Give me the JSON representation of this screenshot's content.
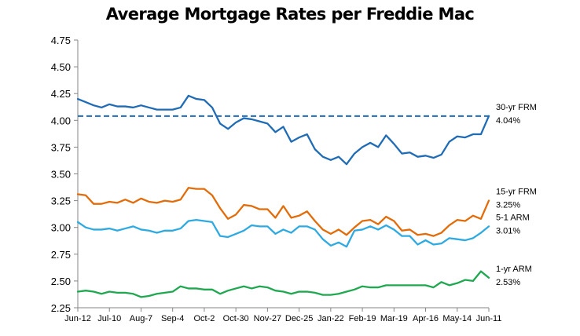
{
  "chart_data": {
    "type": "line",
    "title": "Average Mortgage Rates per Freddie Mac",
    "xlabel": "",
    "ylabel": "",
    "ylim": [
      2.25,
      4.75
    ],
    "yticks": [
      "4.75",
      "4.50",
      "4.25",
      "4.00",
      "3.75",
      "3.50",
      "3.25",
      "3.00",
      "2.75",
      "2.50",
      "2.25"
    ],
    "xtick_labels": [
      "Jun-12",
      "Jul-10",
      "Aug-7",
      "Sep-4",
      "Oct-2",
      "Oct-30",
      "Nov-27",
      "Dec-25",
      "Jan-22",
      "Feb-19",
      "Mar-19",
      "Apr-16",
      "May-14",
      "Jun-11"
    ],
    "grid": false,
    "series": [
      {
        "name": "30-yr FRM",
        "value_label": "4.04%",
        "color": "#1f6bb5",
        "values": [
          4.2,
          4.17,
          4.14,
          4.12,
          4.15,
          4.13,
          4.13,
          4.12,
          4.14,
          4.12,
          4.1,
          4.1,
          4.1,
          4.12,
          4.23,
          4.2,
          4.19,
          4.12,
          3.97,
          3.92,
          3.98,
          4.02,
          4.01,
          3.99,
          3.97,
          3.89,
          3.94,
          3.8,
          3.84,
          3.87,
          3.73,
          3.66,
          3.63,
          3.66,
          3.59,
          3.69,
          3.75,
          3.79,
          3.75,
          3.86,
          3.78,
          3.69,
          3.7,
          3.66,
          3.67,
          3.65,
          3.68,
          3.8,
          3.85,
          3.84,
          3.87,
          3.87,
          4.04
        ]
      },
      {
        "name": "15-yr FRM",
        "value_label": "3.25%",
        "color": "#e36c0a",
        "values": [
          3.31,
          3.3,
          3.22,
          3.22,
          3.24,
          3.23,
          3.26,
          3.23,
          3.27,
          3.24,
          3.23,
          3.25,
          3.24,
          3.26,
          3.37,
          3.36,
          3.36,
          3.3,
          3.18,
          3.08,
          3.12,
          3.21,
          3.2,
          3.17,
          3.17,
          3.09,
          3.2,
          3.09,
          3.11,
          3.15,
          3.06,
          2.98,
          2.94,
          2.98,
          2.93,
          3.0,
          3.06,
          3.07,
          3.03,
          3.1,
          3.06,
          2.97,
          2.98,
          2.93,
          2.94,
          2.92,
          2.95,
          3.02,
          3.07,
          3.06,
          3.11,
          3.08,
          3.25
        ]
      },
      {
        "name": "5-1 ARM",
        "value_label": "3.01%",
        "color": "#2eaae1",
        "values": [
          3.05,
          3.0,
          2.98,
          2.98,
          2.99,
          2.97,
          2.99,
          3.01,
          2.98,
          2.97,
          2.95,
          2.97,
          2.97,
          2.99,
          3.06,
          3.07,
          3.06,
          3.05,
          2.92,
          2.91,
          2.94,
          2.97,
          3.02,
          3.01,
          3.01,
          2.94,
          2.98,
          2.95,
          3.01,
          3.01,
          2.98,
          2.89,
          2.83,
          2.86,
          2.82,
          2.97,
          2.98,
          3.01,
          2.98,
          3.02,
          2.98,
          2.92,
          2.92,
          2.84,
          2.88,
          2.84,
          2.85,
          2.9,
          2.89,
          2.88,
          2.9,
          2.95,
          3.01
        ]
      },
      {
        "name": "1-yr ARM",
        "value_label": "2.53%",
        "color": "#1fa84f",
        "values": [
          2.4,
          2.41,
          2.4,
          2.38,
          2.4,
          2.39,
          2.39,
          2.38,
          2.35,
          2.36,
          2.38,
          2.39,
          2.4,
          2.45,
          2.43,
          2.43,
          2.42,
          2.42,
          2.38,
          2.41,
          2.43,
          2.45,
          2.43,
          2.45,
          2.44,
          2.41,
          2.4,
          2.38,
          2.4,
          2.4,
          2.39,
          2.37,
          2.37,
          2.38,
          2.4,
          2.42,
          2.45,
          2.44,
          2.44,
          2.46,
          2.46,
          2.46,
          2.46,
          2.46,
          2.46,
          2.44,
          2.49,
          2.46,
          2.48,
          2.51,
          2.5,
          2.59,
          2.53
        ]
      }
    ],
    "reference_line": {
      "series": "30-yr FRM",
      "value": 4.04,
      "style": "dashed"
    }
  }
}
